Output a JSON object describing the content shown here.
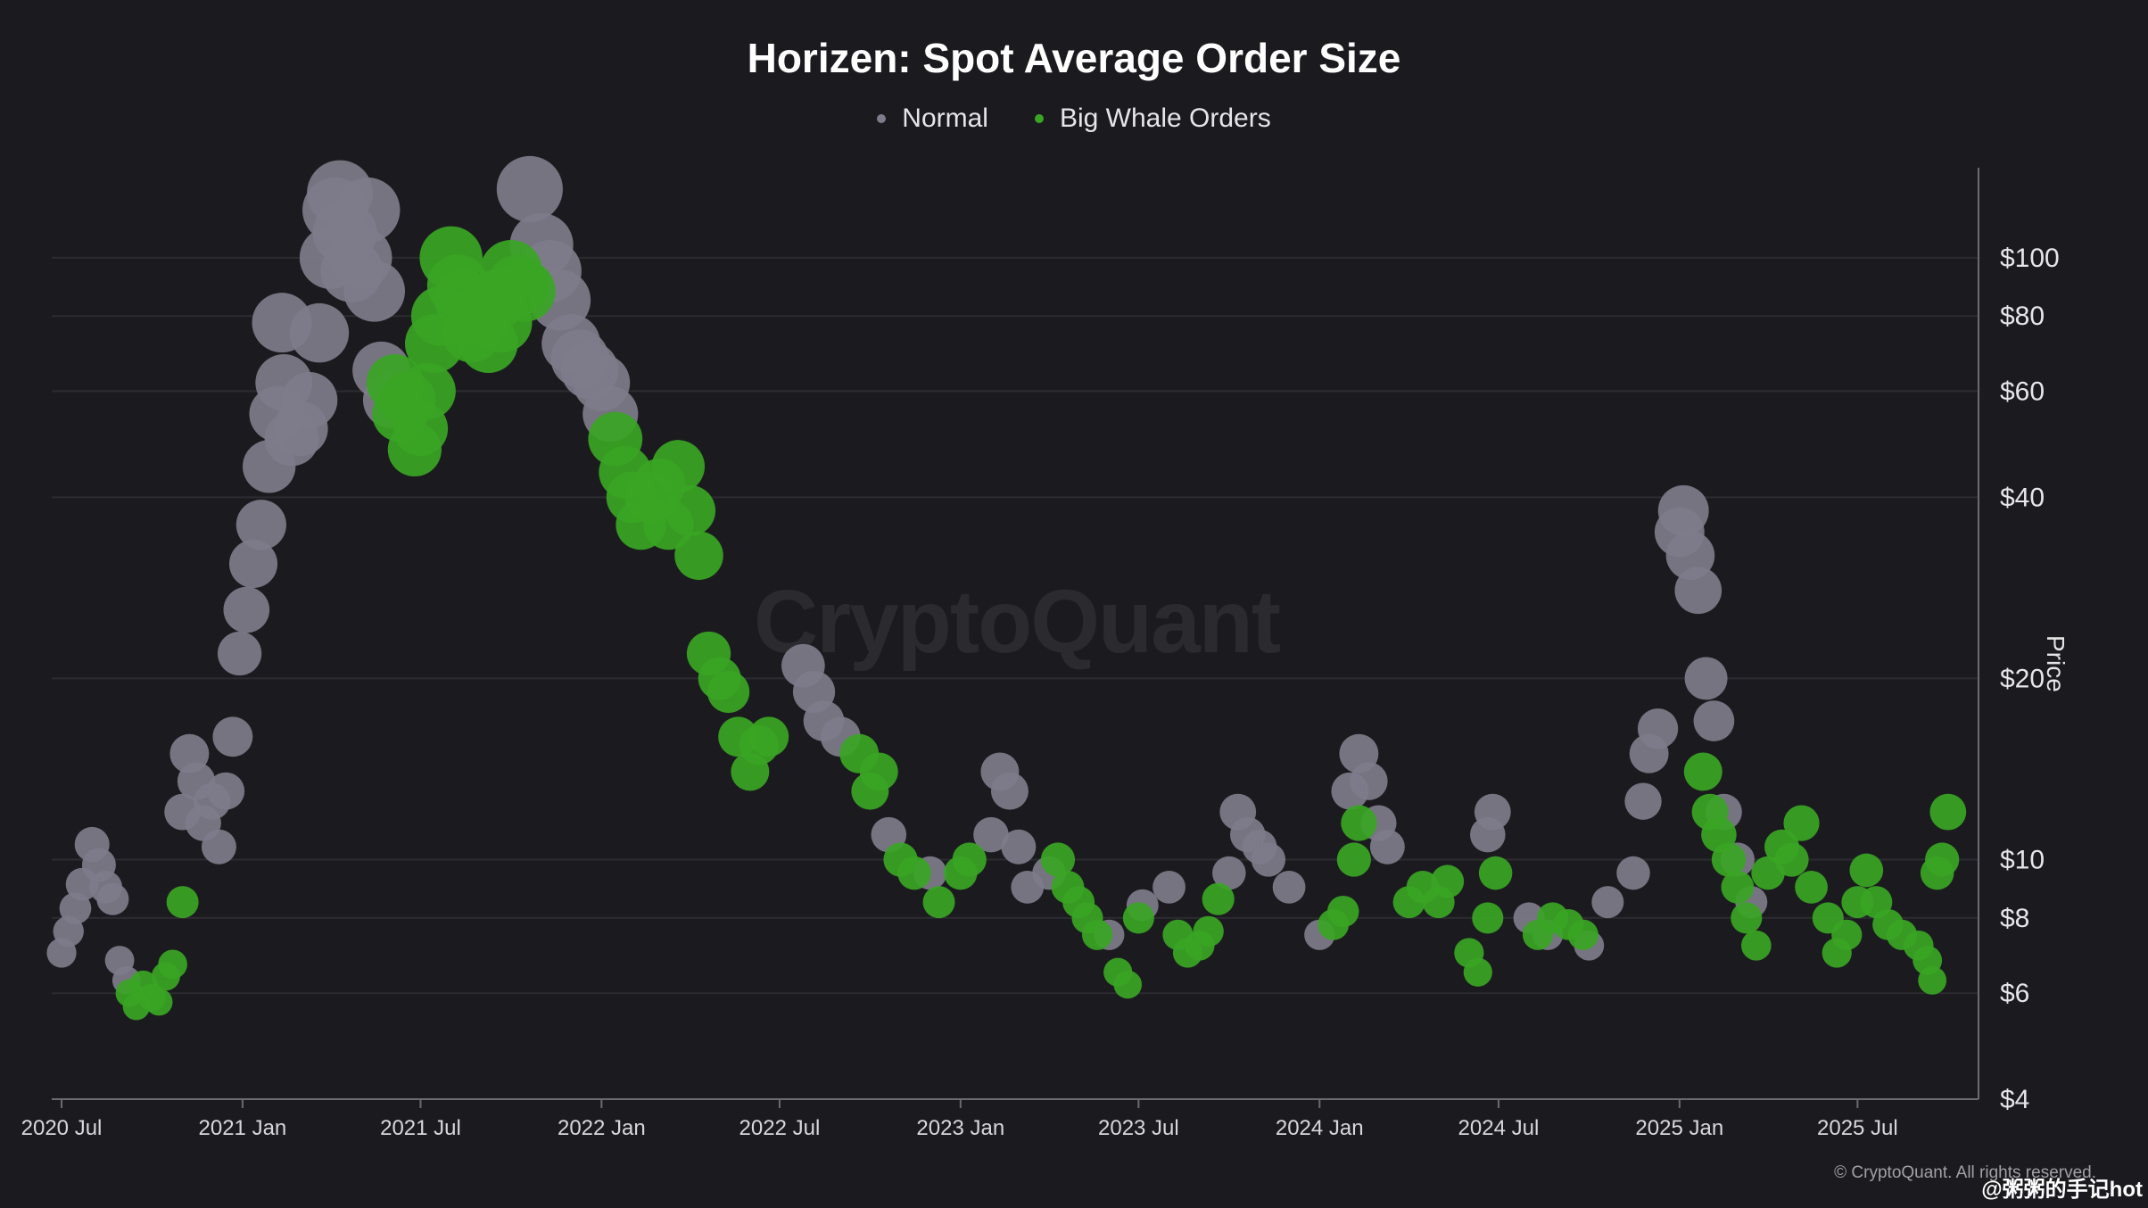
{
  "watermark": "CryptoQuant",
  "copyright": "© CryptoQuant. All rights reserved.",
  "source_tag": "@粥粥的手记hot",
  "colors": {
    "background": "#1b1b1f",
    "normal": "#7e7c8a",
    "whale": "#3aa524",
    "grid": "#2b2b30",
    "axis": "#6a6a70"
  },
  "chart_data": {
    "type": "scatter",
    "title": "Horizen: Spot Average Order Size",
    "ylabel": "Price",
    "xlabel": "",
    "y_scale": "log",
    "ylim": [
      4,
      145
    ],
    "xlim": [
      "2020-06-21",
      "2025-11-01"
    ],
    "legend": {
      "position": "top-center",
      "entries": [
        "Normal",
        "Big Whale Orders"
      ]
    },
    "x_ticks": [
      "2020 Jul",
      "2021 Jan",
      "2021 Jul",
      "2022 Jan",
      "2022 Jul",
      "2023 Jan",
      "2023 Jul",
      "2024 Jan",
      "2024 Jul",
      "2025 Jan",
      "2025 Jul"
    ],
    "y_ticks": [
      "$4",
      "$6",
      "$8",
      "$10",
      "$20",
      "$40",
      "$60",
      "$80",
      "$100"
    ],
    "series": [
      {
        "name": "Normal",
        "points": [
          [
            "2020-07-01",
            7.0
          ],
          [
            "2020-07-08",
            7.6
          ],
          [
            "2020-07-15",
            8.3
          ],
          [
            "2020-07-22",
            9.1
          ],
          [
            "2020-08-01",
            10.6
          ],
          [
            "2020-08-08",
            9.8
          ],
          [
            "2020-08-15",
            9.0
          ],
          [
            "2020-08-22",
            8.6
          ],
          [
            "2020-08-29",
            6.8
          ],
          [
            "2020-09-05",
            6.3
          ],
          [
            "2020-11-01",
            12.0
          ],
          [
            "2020-11-08",
            15.0
          ],
          [
            "2020-11-15",
            13.5
          ],
          [
            "2020-11-22",
            11.5
          ],
          [
            "2020-12-01",
            12.5
          ],
          [
            "2020-12-08",
            10.5
          ],
          [
            "2020-12-15",
            13.0
          ],
          [
            "2020-12-22",
            16.0
          ],
          [
            "2020-12-29",
            22.0
          ],
          [
            "2021-01-05",
            26.0
          ],
          [
            "2021-01-12",
            31.0
          ],
          [
            "2021-01-20",
            36.0
          ],
          [
            "2021-01-28",
            45.0
          ],
          [
            "2021-02-05",
            55.0
          ],
          [
            "2021-02-10",
            78.0
          ],
          [
            "2021-02-12",
            62.0
          ],
          [
            "2021-02-20",
            50.0
          ],
          [
            "2021-03-01",
            52.0
          ],
          [
            "2021-03-10",
            58.0
          ],
          [
            "2021-03-20",
            75.0
          ],
          [
            "2021-04-01",
            100.0
          ],
          [
            "2021-04-05",
            120.0
          ],
          [
            "2021-04-10",
            128.0
          ],
          [
            "2021-04-15",
            110.0
          ],
          [
            "2021-04-22",
            95.0
          ],
          [
            "2021-05-01",
            100.0
          ],
          [
            "2021-05-08",
            120.0
          ],
          [
            "2021-05-15",
            88.0
          ],
          [
            "2021-05-22",
            65.0
          ],
          [
            "2021-06-01",
            58.0
          ],
          [
            "2021-10-20",
            130.0
          ],
          [
            "2021-11-01",
            105.0
          ],
          [
            "2021-11-10",
            95.0
          ],
          [
            "2021-11-20",
            85.0
          ],
          [
            "2021-12-01",
            72.0
          ],
          [
            "2021-12-10",
            68.0
          ],
          [
            "2021-12-20",
            65.0
          ],
          [
            "2022-01-01",
            62.0
          ],
          [
            "2022-01-10",
            55.0
          ],
          [
            "2022-07-25",
            21.0
          ],
          [
            "2022-08-05",
            19.0
          ],
          [
            "2022-08-15",
            17.0
          ],
          [
            "2022-09-01",
            16.0
          ],
          [
            "2022-10-20",
            11.0
          ],
          [
            "2022-12-01",
            9.5
          ],
          [
            "2023-02-01",
            11.0
          ],
          [
            "2023-02-10",
            14.0
          ],
          [
            "2023-02-20",
            13.0
          ],
          [
            "2023-03-01",
            10.5
          ],
          [
            "2023-03-10",
            9.0
          ],
          [
            "2023-04-01",
            9.5
          ],
          [
            "2023-06-01",
            7.5
          ],
          [
            "2023-07-05",
            8.4
          ],
          [
            "2023-08-01",
            9.0
          ],
          [
            "2023-10-01",
            9.5
          ],
          [
            "2023-10-10",
            12.0
          ],
          [
            "2023-10-20",
            11.0
          ],
          [
            "2023-11-01",
            10.5
          ],
          [
            "2023-11-10",
            10.0
          ],
          [
            "2023-12-01",
            9.0
          ],
          [
            "2024-01-01",
            7.5
          ],
          [
            "2024-02-01",
            13.0
          ],
          [
            "2024-02-10",
            15.0
          ],
          [
            "2024-02-20",
            13.5
          ],
          [
            "2024-03-01",
            11.5
          ],
          [
            "2024-03-10",
            10.5
          ],
          [
            "2024-06-20",
            11.0
          ],
          [
            "2024-06-25",
            12.0
          ],
          [
            "2024-08-01",
            8.0
          ],
          [
            "2024-08-20",
            7.5
          ],
          [
            "2024-10-01",
            7.2
          ],
          [
            "2024-10-20",
            8.5
          ],
          [
            "2024-11-15",
            9.5
          ],
          [
            "2024-11-25",
            12.5
          ],
          [
            "2024-12-01",
            15.0
          ],
          [
            "2024-12-10",
            16.5
          ],
          [
            "2025-01-01",
            35.0
          ],
          [
            "2025-01-05",
            38.0
          ],
          [
            "2025-01-12",
            32.0
          ],
          [
            "2025-01-20",
            28.0
          ],
          [
            "2025-01-28",
            20.0
          ],
          [
            "2025-02-05",
            17.0
          ],
          [
            "2025-02-15",
            12.0
          ],
          [
            "2025-03-01",
            10.0
          ],
          [
            "2025-03-15",
            8.5
          ]
        ]
      },
      {
        "name": "Big Whale Orders",
        "points": [
          [
            "2020-09-08",
            6.0
          ],
          [
            "2020-09-15",
            5.7
          ],
          [
            "2020-09-22",
            6.2
          ],
          [
            "2020-10-01",
            5.9
          ],
          [
            "2020-10-08",
            5.8
          ],
          [
            "2020-10-15",
            6.4
          ],
          [
            "2020-10-22",
            6.7
          ],
          [
            "2020-11-01",
            8.5
          ],
          [
            "2021-06-05",
            62.0
          ],
          [
            "2021-06-10",
            55.0
          ],
          [
            "2021-06-18",
            58.0
          ],
          [
            "2021-06-25",
            48.0
          ],
          [
            "2021-07-01",
            52.0
          ],
          [
            "2021-07-08",
            60.0
          ],
          [
            "2021-07-15",
            72.0
          ],
          [
            "2021-07-22",
            80.0
          ],
          [
            "2021-08-01",
            100.0
          ],
          [
            "2021-08-08",
            90.0
          ],
          [
            "2021-08-15",
            85.0
          ],
          [
            "2021-08-22",
            75.0
          ],
          [
            "2021-09-01",
            80.0
          ],
          [
            "2021-09-08",
            72.0
          ],
          [
            "2021-09-15",
            85.0
          ],
          [
            "2021-09-22",
            78.0
          ],
          [
            "2021-10-01",
            95.0
          ],
          [
            "2021-10-08",
            90.0
          ],
          [
            "2021-10-15",
            88.0
          ],
          [
            "2022-01-15",
            50.0
          ],
          [
            "2022-01-25",
            44.0
          ],
          [
            "2022-02-01",
            40.0
          ],
          [
            "2022-02-10",
            36.0
          ],
          [
            "2022-02-20",
            40.0
          ],
          [
            "2022-03-01",
            42.0
          ],
          [
            "2022-03-10",
            36.0
          ],
          [
            "2022-03-20",
            45.0
          ],
          [
            "2022-04-01",
            38.0
          ],
          [
            "2022-04-10",
            32.0
          ],
          [
            "2022-04-20",
            22.0
          ],
          [
            "2022-05-01",
            20.0
          ],
          [
            "2022-05-10",
            19.0
          ],
          [
            "2022-05-20",
            16.0
          ],
          [
            "2022-06-01",
            14.0
          ],
          [
            "2022-06-10",
            15.5
          ],
          [
            "2022-06-20",
            16.0
          ],
          [
            "2022-09-20",
            15.0
          ],
          [
            "2022-10-01",
            13.0
          ],
          [
            "2022-10-10",
            14.0
          ],
          [
            "2022-11-01",
            10.0
          ],
          [
            "2022-11-15",
            9.5
          ],
          [
            "2022-12-10",
            8.5
          ],
          [
            "2023-01-01",
            9.5
          ],
          [
            "2023-01-10",
            10.0
          ],
          [
            "2023-04-10",
            10.0
          ],
          [
            "2023-04-20",
            9.0
          ],
          [
            "2023-05-01",
            8.5
          ],
          [
            "2023-05-10",
            8.0
          ],
          [
            "2023-05-20",
            7.5
          ],
          [
            "2023-06-10",
            6.5
          ],
          [
            "2023-06-20",
            6.2
          ],
          [
            "2023-07-01",
            8.0
          ],
          [
            "2023-08-10",
            7.5
          ],
          [
            "2023-08-20",
            7.0
          ],
          [
            "2023-09-01",
            7.2
          ],
          [
            "2023-09-10",
            7.6
          ],
          [
            "2023-09-20",
            8.6
          ],
          [
            "2024-01-15",
            7.8
          ],
          [
            "2024-01-25",
            8.2
          ],
          [
            "2024-02-05",
            10.0
          ],
          [
            "2024-02-10",
            11.5
          ],
          [
            "2024-04-01",
            8.5
          ],
          [
            "2024-04-15",
            9.0
          ],
          [
            "2024-05-01",
            8.5
          ],
          [
            "2024-05-10",
            9.2
          ],
          [
            "2024-06-01",
            7.0
          ],
          [
            "2024-06-10",
            6.5
          ],
          [
            "2024-06-20",
            8.0
          ],
          [
            "2024-06-28",
            9.5
          ],
          [
            "2024-08-10",
            7.5
          ],
          [
            "2024-08-25",
            8.0
          ],
          [
            "2024-09-10",
            7.8
          ],
          [
            "2024-09-25",
            7.5
          ],
          [
            "2025-01-25",
            14.0
          ],
          [
            "2025-02-01",
            12.0
          ],
          [
            "2025-02-10",
            11.0
          ],
          [
            "2025-02-20",
            10.0
          ],
          [
            "2025-03-01",
            9.0
          ],
          [
            "2025-03-10",
            8.0
          ],
          [
            "2025-03-20",
            7.2
          ],
          [
            "2025-04-01",
            9.5
          ],
          [
            "2025-04-15",
            10.5
          ],
          [
            "2025-04-25",
            10.0
          ],
          [
            "2025-05-05",
            11.5
          ],
          [
            "2025-05-15",
            9.0
          ],
          [
            "2025-06-01",
            8.0
          ],
          [
            "2025-06-10",
            7.0
          ],
          [
            "2025-06-20",
            7.5
          ],
          [
            "2025-07-01",
            8.5
          ],
          [
            "2025-07-10",
            9.6
          ],
          [
            "2025-07-20",
            8.5
          ],
          [
            "2025-08-01",
            7.8
          ],
          [
            "2025-08-15",
            7.5
          ],
          [
            "2025-09-01",
            7.2
          ],
          [
            "2025-09-10",
            6.8
          ],
          [
            "2025-09-15",
            6.3
          ],
          [
            "2025-09-20",
            9.5
          ],
          [
            "2025-09-25",
            10.0
          ],
          [
            "2025-10-01",
            12.0
          ]
        ]
      }
    ]
  }
}
